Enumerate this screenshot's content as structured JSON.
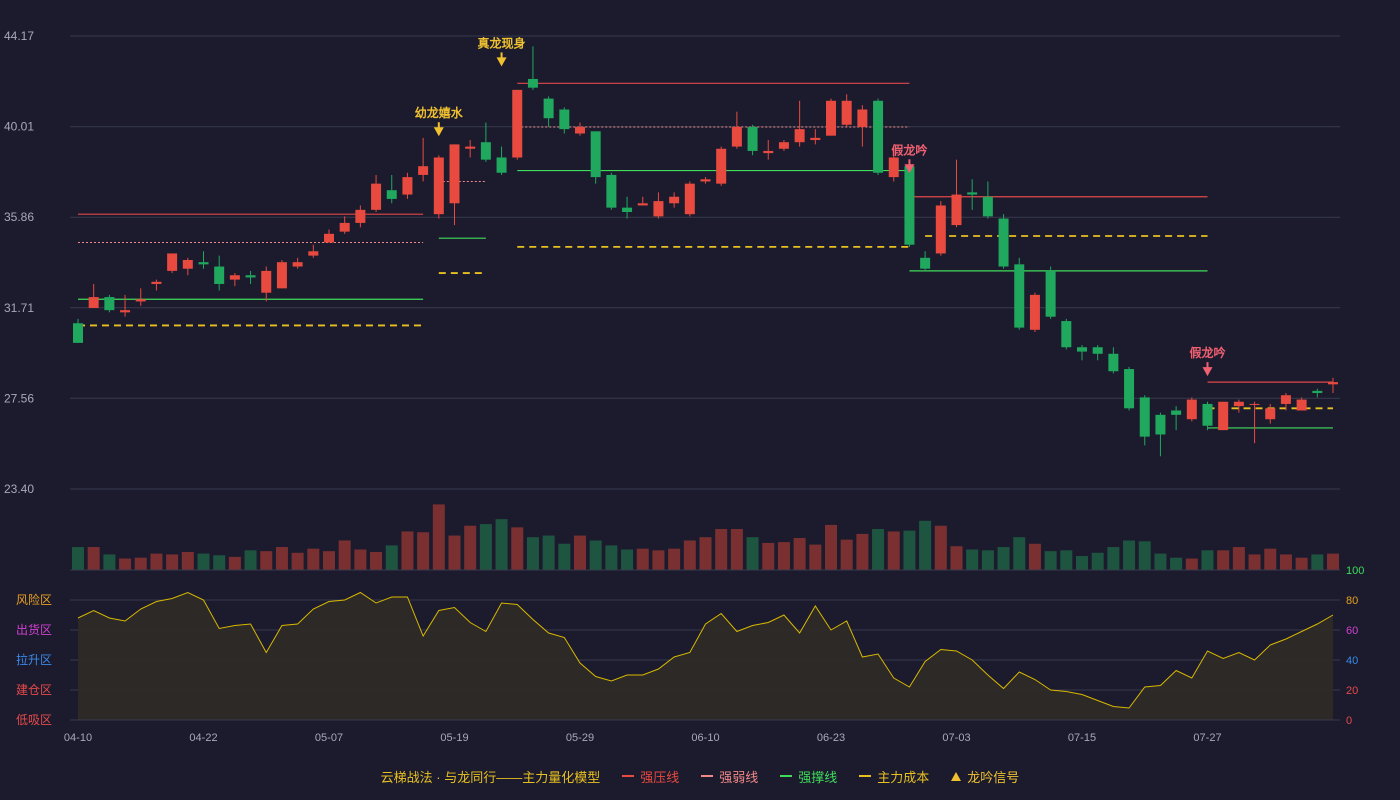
{
  "colors": {
    "background": "#1b1b2d",
    "up": "#e84a3f",
    "down": "#1fa85e",
    "up_vol": "#7a3030",
    "down_vol": "#1e5540",
    "support": "#3fdc5a",
    "resist": "#e04848",
    "weak": "#f08888",
    "cost": "#e8c020",
    "signal": "#f0c030",
    "signal_bad": "#f06070",
    "osc_line": "#d8b800",
    "osc_fill": "#2e2a26",
    "grid": "#3a3a4e",
    "axis_text": "#a8a8b8"
  },
  "chart_data": {
    "type": "candlestick",
    "price_axis": {
      "ticks": [
        "44.17",
        "40.01",
        "35.86",
        "31.71",
        "27.56",
        "23.40"
      ],
      "ylim": [
        23.4,
        44.17
      ]
    },
    "x_tick_labels": [
      "04-10",
      "04-22",
      "05-07",
      "05-19",
      "05-29",
      "06-10",
      "06-23",
      "07-03",
      "07-15",
      "07-27"
    ],
    "x_tick_index": [
      0,
      8,
      16,
      24,
      32,
      40,
      48,
      56,
      64,
      72
    ],
    "candles": [
      [
        31.0,
        30.1,
        30.1,
        31.2
      ],
      [
        31.7,
        32.2,
        31.7,
        32.8
      ],
      [
        32.2,
        31.6,
        31.5,
        32.3
      ],
      [
        31.5,
        31.6,
        31.3,
        32.3
      ],
      [
        32.0,
        32.1,
        31.8,
        32.6
      ],
      [
        32.8,
        32.9,
        32.5,
        33.0
      ],
      [
        33.4,
        34.2,
        33.3,
        34.2
      ],
      [
        33.5,
        33.9,
        33.2,
        34.0
      ],
      [
        33.8,
        33.7,
        33.5,
        34.3
      ],
      [
        33.6,
        32.8,
        32.5,
        34.1
      ],
      [
        33.0,
        33.2,
        32.7,
        33.3
      ],
      [
        33.2,
        33.1,
        32.8,
        33.4
      ],
      [
        32.4,
        33.4,
        32.0,
        33.6
      ],
      [
        32.6,
        33.8,
        32.6,
        33.9
      ],
      [
        33.6,
        33.8,
        33.5,
        34.0
      ],
      [
        34.1,
        34.3,
        34.0,
        34.6
      ],
      [
        34.7,
        35.1,
        34.7,
        35.3
      ],
      [
        35.2,
        35.6,
        35.1,
        35.9
      ],
      [
        35.6,
        36.2,
        35.4,
        36.4
      ],
      [
        36.2,
        37.4,
        36.1,
        37.8
      ],
      [
        37.1,
        36.7,
        36.5,
        37.8
      ],
      [
        36.9,
        37.7,
        36.7,
        37.9
      ],
      [
        37.8,
        38.2,
        37.5,
        39.5
      ],
      [
        36.0,
        38.6,
        35.8,
        38.7
      ],
      [
        36.5,
        39.2,
        35.5,
        39.2
      ],
      [
        39.0,
        39.1,
        38.6,
        39.4
      ],
      [
        39.3,
        38.5,
        38.4,
        40.2
      ],
      [
        38.6,
        37.9,
        37.8,
        39.1
      ],
      [
        38.6,
        41.7,
        38.5,
        41.7
      ],
      [
        42.2,
        41.8,
        41.7,
        43.7
      ],
      [
        41.3,
        40.4,
        40.0,
        41.4
      ],
      [
        40.8,
        39.9,
        39.7,
        40.9
      ],
      [
        39.7,
        40.0,
        39.6,
        40.2
      ],
      [
        39.8,
        37.7,
        37.4,
        39.8
      ],
      [
        37.8,
        36.3,
        36.2,
        37.9
      ],
      [
        36.3,
        36.1,
        35.8,
        36.8
      ],
      [
        36.4,
        36.5,
        36.4,
        36.8
      ],
      [
        35.9,
        36.6,
        35.8,
        37.0
      ],
      [
        36.5,
        36.8,
        36.3,
        37.0
      ],
      [
        36.0,
        37.4,
        35.9,
        37.5
      ],
      [
        37.5,
        37.6,
        37.4,
        37.7
      ],
      [
        37.4,
        39.0,
        37.3,
        39.1
      ],
      [
        39.1,
        40.0,
        39.0,
        40.7
      ],
      [
        40.0,
        38.9,
        38.7,
        40.1
      ],
      [
        38.8,
        38.9,
        38.5,
        39.4
      ],
      [
        39.0,
        39.3,
        38.9,
        39.4
      ],
      [
        39.3,
        39.9,
        39.1,
        41.2
      ],
      [
        39.4,
        39.5,
        39.2,
        39.9
      ],
      [
        39.6,
        41.2,
        39.6,
        41.3
      ],
      [
        40.1,
        41.2,
        40.0,
        41.5
      ],
      [
        40.0,
        40.8,
        39.1,
        41.0
      ],
      [
        41.2,
        37.9,
        37.8,
        41.3
      ],
      [
        37.7,
        38.6,
        37.5,
        39.0
      ],
      [
        38.2,
        34.6,
        34.5,
        38.3
      ],
      [
        34.0,
        33.5,
        33.4,
        34.3
      ],
      [
        34.2,
        36.4,
        34.1,
        36.6
      ],
      [
        35.5,
        36.9,
        35.4,
        38.5
      ],
      [
        37.0,
        36.9,
        36.2,
        37.6
      ],
      [
        36.8,
        35.9,
        35.8,
        37.5
      ],
      [
        35.8,
        33.6,
        33.5,
        36.0
      ],
      [
        33.7,
        30.8,
        30.7,
        34.0
      ],
      [
        30.7,
        32.3,
        30.6,
        32.4
      ],
      [
        33.4,
        31.3,
        31.2,
        33.6
      ],
      [
        31.1,
        29.9,
        29.8,
        31.2
      ],
      [
        29.9,
        29.7,
        29.3,
        30.0
      ],
      [
        29.9,
        29.6,
        29.3,
        30.0
      ],
      [
        29.6,
        28.8,
        28.7,
        29.9
      ],
      [
        28.9,
        27.1,
        27.0,
        29.0
      ],
      [
        27.6,
        25.8,
        25.4,
        27.7
      ],
      [
        26.8,
        25.9,
        24.9,
        26.9
      ],
      [
        27.0,
        26.8,
        26.1,
        27.2
      ],
      [
        26.6,
        27.5,
        26.5,
        27.6
      ],
      [
        27.3,
        26.3,
        26.1,
        27.4
      ],
      [
        26.1,
        27.4,
        26.1,
        27.4
      ],
      [
        27.2,
        27.4,
        26.9,
        27.5
      ],
      [
        27.3,
        27.3,
        25.5,
        27.4
      ],
      [
        26.6,
        27.1,
        26.4,
        27.3
      ],
      [
        27.3,
        27.7,
        27.0,
        27.8
      ],
      [
        27.0,
        27.5,
        27.0,
        27.6
      ],
      [
        27.9,
        27.8,
        27.6,
        28.0
      ],
      [
        28.2,
        28.3,
        27.8,
        28.5
      ]
    ],
    "volume_axis": {
      "max": 1000
    },
    "volume": [
      280,
      280,
      190,
      140,
      150,
      200,
      190,
      220,
      200,
      180,
      160,
      240,
      230,
      280,
      210,
      260,
      230,
      360,
      250,
      220,
      300,
      470,
      460,
      800,
      420,
      540,
      560,
      620,
      520,
      400,
      420,
      320,
      420,
      360,
      300,
      250,
      260,
      240,
      260,
      360,
      400,
      500,
      500,
      400,
      330,
      340,
      390,
      310,
      550,
      370,
      440,
      500,
      470,
      480,
      600,
      540,
      290,
      250,
      240,
      280,
      400,
      320,
      230,
      240,
      170,
      210,
      280,
      360,
      350,
      200,
      150,
      140,
      240,
      240,
      280,
      190,
      260,
      190,
      150,
      190,
      200
    ],
    "trend_lines": [
      {
        "role": "strong_resistance",
        "segments": [
          [
            0,
            22,
            36.0
          ],
          [
            28,
            53,
            42.0
          ],
          [
            53,
            72,
            36.8
          ],
          [
            72,
            80,
            28.3
          ]
        ]
      },
      {
        "role": "weak_resistance",
        "segments": [
          [
            0,
            22,
            34.7
          ],
          [
            23,
            26,
            37.5
          ],
          [
            28,
            53,
            40.0
          ]
        ]
      },
      {
        "role": "strong_support",
        "segments": [
          [
            0,
            22,
            32.1
          ],
          [
            23,
            26,
            34.9
          ],
          [
            28,
            53,
            38.0
          ],
          [
            53,
            72,
            33.4
          ],
          [
            72,
            80,
            26.2
          ]
        ]
      },
      {
        "role": "main_cost",
        "segments": [
          [
            0,
            22,
            30.9
          ],
          [
            23,
            26,
            33.3
          ],
          [
            28,
            53,
            34.5
          ],
          [
            54,
            72,
            35.0
          ],
          [
            72,
            80,
            27.1
          ]
        ]
      }
    ],
    "signals": [
      {
        "label": "幼龙嬉水",
        "index": 23,
        "price": 39.3,
        "kind": "good"
      },
      {
        "label": "真龙现身",
        "index": 27,
        "price": 42.5,
        "kind": "good"
      },
      {
        "label": "假龙吟",
        "index": 53,
        "price": 37.6,
        "kind": "bad"
      },
      {
        "label": "假龙吟",
        "index": 72,
        "price": 28.3,
        "kind": "bad"
      }
    ],
    "oscillator": {
      "zone_labels": [
        "风险区",
        "出货区",
        "拉升区",
        "建仓区",
        "低吸区"
      ],
      "zone_colors": [
        "#e8a020",
        "#d040d0",
        "#3a8ae8",
        "#e84a4a",
        "#e84a4a"
      ],
      "ticks": [
        "100",
        "80",
        "60",
        "40",
        "20",
        "0"
      ],
      "tick_colors": [
        "#3fdc5a",
        "#e8a020",
        "#d040d0",
        "#3a8ae8",
        "#e84a4a",
        "#e84a4a"
      ],
      "ylim": [
        0,
        100
      ],
      "values": [
        68,
        73,
        68,
        66,
        74,
        79,
        81,
        85,
        80,
        61,
        63,
        64,
        45,
        63,
        64,
        74,
        79,
        80,
        85,
        78,
        82,
        82,
        56,
        73,
        75,
        65,
        59,
        78,
        77,
        67,
        58,
        55,
        38,
        29,
        26,
        30,
        30,
        34,
        42,
        45,
        64,
        71,
        59,
        63,
        65,
        70,
        58,
        76,
        60,
        66,
        42,
        44,
        28,
        22,
        39,
        47,
        46,
        40,
        30,
        21,
        32,
        27,
        20,
        19,
        17,
        13,
        9,
        8,
        22,
        23,
        33,
        28,
        46,
        41,
        45,
        40,
        50,
        54,
        59,
        64,
        70
      ]
    }
  },
  "legend": {
    "title": "云梯战法 · 与龙同行——主力量化模型",
    "items": [
      {
        "label": "强压线",
        "color": "#e84a3f",
        "style": "solid"
      },
      {
        "label": "强弱线",
        "color": "#f08888",
        "style": "dashed"
      },
      {
        "label": "强撑线",
        "color": "#3fdc5a",
        "style": "solid"
      },
      {
        "label": "主力成本",
        "color": "#e8c020",
        "style": "dashed"
      },
      {
        "label": "龙吟信号",
        "color": "#f0c030",
        "style": "triangle"
      }
    ]
  }
}
